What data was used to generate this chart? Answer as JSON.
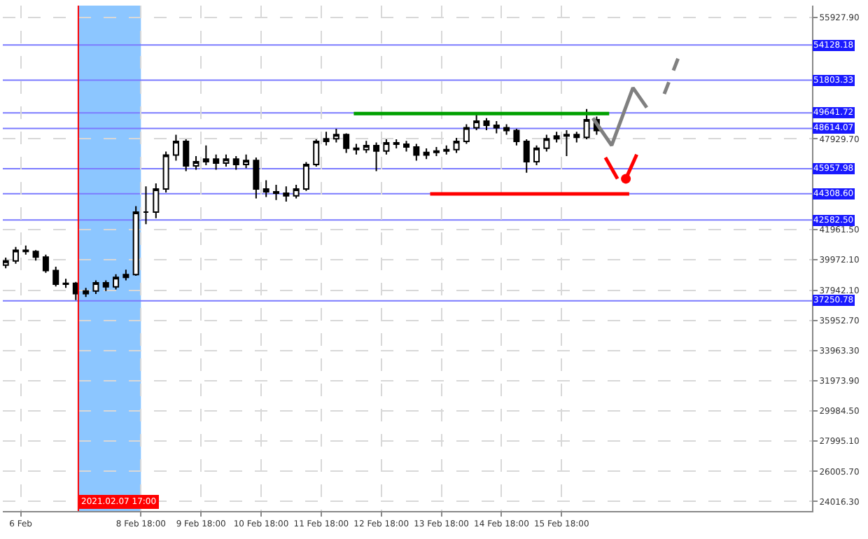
{
  "chart_data": {
    "type": "candlestick",
    "x": [
      "2021-02-06T12:00",
      "2021-02-06T16:00",
      "2021-02-06T20:00",
      "2021-02-07T00:00",
      "2021-02-07T04:00",
      "2021-02-07T08:00",
      "2021-02-07T12:00",
      "2021-02-07T16:00",
      "2021-02-07T20:00",
      "2021-02-08T00:00",
      "2021-02-08T04:00",
      "2021-02-08T08:00",
      "2021-02-08T12:00",
      "2021-02-08T16:00",
      "2021-02-08T20:00",
      "2021-02-09T00:00",
      "2021-02-09T04:00",
      "2021-02-09T08:00",
      "2021-02-09T12:00",
      "2021-02-09T16:00",
      "2021-02-09T20:00",
      "2021-02-10T00:00",
      "2021-02-10T04:00",
      "2021-02-10T08:00",
      "2021-02-10T12:00",
      "2021-02-10T16:00",
      "2021-02-10T20:00",
      "2021-02-11T00:00",
      "2021-02-11T04:00",
      "2021-02-11T08:00",
      "2021-02-11T12:00",
      "2021-02-11T16:00",
      "2021-02-11T20:00",
      "2021-02-12T00:00",
      "2021-02-12T04:00",
      "2021-02-12T08:00",
      "2021-02-12T12:00",
      "2021-02-12T16:00",
      "2021-02-12T20:00",
      "2021-02-13T00:00",
      "2021-02-13T04:00",
      "2021-02-13T08:00",
      "2021-02-13T12:00",
      "2021-02-13T16:00",
      "2021-02-13T20:00",
      "2021-02-14T00:00",
      "2021-02-14T04:00",
      "2021-02-14T08:00",
      "2021-02-14T12:00",
      "2021-02-14T16:00",
      "2021-02-14T20:00",
      "2021-02-15T00:00",
      "2021-02-15T04:00",
      "2021-02-15T08:00",
      "2021-02-15T12:00",
      "2021-02-15T16:00",
      "2021-02-15T20:00",
      "2021-02-16T00:00",
      "2021-02-16T04:00",
      "2021-02-16T08:00"
    ],
    "ohlc": [
      [
        39600,
        40100,
        39400,
        39880
      ],
      [
        39880,
        40800,
        39700,
        40590
      ],
      [
        40590,
        40900,
        40300,
        40500
      ],
      [
        40500,
        40600,
        39900,
        40140
      ],
      [
        40140,
        40300,
        39100,
        39250
      ],
      [
        39250,
        39500,
        38200,
        38350
      ],
      [
        38350,
        38700,
        38100,
        38400
      ],
      [
        38400,
        38500,
        37300,
        37720
      ],
      [
        37720,
        38100,
        37500,
        37900
      ],
      [
        37900,
        38600,
        37700,
        38440
      ],
      [
        38440,
        38600,
        37900,
        38170
      ],
      [
        38170,
        39000,
        38000,
        38800
      ],
      [
        38800,
        39300,
        38600,
        38980
      ],
      [
        38980,
        43500,
        38900,
        43100
      ],
      [
        43100,
        44800,
        42300,
        43100
      ],
      [
        43100,
        45000,
        42700,
        44620
      ],
      [
        44620,
        47100,
        44400,
        46860
      ],
      [
        46860,
        48200,
        46500,
        47760
      ],
      [
        47760,
        47900,
        45800,
        46150
      ],
      [
        46150,
        46800,
        45900,
        46420
      ],
      [
        46420,
        47500,
        46200,
        46600
      ],
      [
        46600,
        46900,
        45900,
        46330
      ],
      [
        46330,
        46900,
        46100,
        46600
      ],
      [
        46600,
        46800,
        45900,
        46240
      ],
      [
        46240,
        46900,
        46000,
        46510
      ],
      [
        46510,
        46700,
        44000,
        44620
      ],
      [
        44620,
        45200,
        44100,
        44440
      ],
      [
        44440,
        44900,
        43900,
        44350
      ],
      [
        44350,
        44800,
        43800,
        44180
      ],
      [
        44180,
        44900,
        44000,
        44620
      ],
      [
        44620,
        46400,
        44500,
        46240
      ],
      [
        46240,
        47900,
        46100,
        47760
      ],
      [
        47760,
        48400,
        47500,
        47940
      ],
      [
        47940,
        48600,
        47700,
        48210
      ],
      [
        48210,
        48300,
        47000,
        47310
      ],
      [
        47310,
        47600,
        46900,
        47220
      ],
      [
        47220,
        47800,
        47000,
        47490
      ],
      [
        47490,
        47700,
        45800,
        47130
      ],
      [
        47130,
        47900,
        46900,
        47670
      ],
      [
        47670,
        47900,
        47300,
        47580
      ],
      [
        47580,
        47800,
        47100,
        47400
      ],
      [
        47400,
        47600,
        46500,
        46860
      ],
      [
        46860,
        47300,
        46600,
        47040
      ],
      [
        47040,
        47400,
        46800,
        47130
      ],
      [
        47130,
        47500,
        46900,
        47220
      ],
      [
        47220,
        48000,
        47000,
        47760
      ],
      [
        47760,
        48900,
        47600,
        48660
      ],
      [
        48660,
        49600,
        48500,
        49100
      ],
      [
        49100,
        49300,
        48500,
        48830
      ],
      [
        48830,
        49100,
        48300,
        48660
      ],
      [
        48660,
        48900,
        48200,
        48480
      ],
      [
        48480,
        48600,
        47500,
        47760
      ],
      [
        47760,
        47900,
        45700,
        46420
      ],
      [
        46420,
        47500,
        46200,
        47310
      ],
      [
        47310,
        48200,
        47100,
        47940
      ],
      [
        47940,
        48400,
        47700,
        48120
      ],
      [
        48120,
        48500,
        46800,
        48210
      ],
      [
        48210,
        48400,
        47700,
        48030
      ],
      [
        48030,
        49900,
        47900,
        49190
      ],
      [
        49190,
        49400,
        48200,
        48480
      ]
    ],
    "color": "#000000",
    "series": [
      {
        "type": "line",
        "color": "#00a000",
        "x": [
          "2021-02-12T07:00",
          "2021-02-16T13:00"
        ],
        "values": [
          49600,
          49600
        ]
      },
      {
        "type": "line",
        "color": "#ff0000",
        "x": [
          "2021-02-13T13:30",
          "2021-02-16T21:00"
        ],
        "values": [
          44300,
          44300
        ]
      },
      {
        "type": "line",
        "color": "#808080",
        "x": [
          "2021-02-16T06:30",
          "2021-02-16T14:00",
          "2021-02-16T22:30",
          "2021-02-17T04:00"
        ],
        "values": [
          49300,
          47500,
          51300,
          50000
        ]
      },
      {
        "type": "line",
        "color": "#808080",
        "line_style": "dashed",
        "x": [
          "2021-02-17T11:00",
          "2021-02-17T16:40"
        ],
        "values": [
          50900,
          53300
        ]
      },
      {
        "type": "line",
        "color": "#ff0000",
        "x": [
          "2021-02-16T11:30",
          "2021-02-16T16:20"
        ],
        "values": [
          46700,
          45300
        ]
      },
      {
        "type": "line",
        "color": "#ff0000",
        "x": [
          "2021-02-16T19:40",
          "2021-02-17T00:00"
        ],
        "values": [
          45300,
          46900
        ]
      },
      {
        "type": "scatter",
        "color": "#ff0000",
        "marker": "circle",
        "x": [
          "2021-02-16T19:40"
        ],
        "values": [
          45300
        ]
      }
    ],
    "ref_lines": [
      {
        "axis": "y",
        "value": 54128.18,
        "label": "54128.18",
        "color": "#7b7bff"
      },
      {
        "axis": "y",
        "value": 51803.33,
        "label": "51803.33",
        "color": "#7b7bff"
      },
      {
        "axis": "y",
        "value": 49641.72,
        "label": "49641.72",
        "color": "#7b7bff"
      },
      {
        "axis": "y",
        "value": 48614.07,
        "label": "48614.07",
        "color": "#7b7bff"
      },
      {
        "axis": "y",
        "value": 45957.98,
        "label": "45957.98",
        "color": "#7b7bff"
      },
      {
        "axis": "y",
        "value": 44308.6,
        "label": "44308.60",
        "color": "#7b7bff"
      },
      {
        "axis": "y",
        "value": 42582.5,
        "label": "42582.50",
        "color": "#7b7bff"
      },
      {
        "axis": "y",
        "value": 37250.78,
        "label": "37250.78",
        "color": "#7b7bff"
      },
      {
        "axis": "x",
        "value": "2021-02-07T17:00",
        "label": "2021.02.07 17:00",
        "color": "#ff0000"
      }
    ],
    "bands": [
      {
        "axis": "x",
        "from": "2021-02-07T17:00",
        "to": "2021-02-08T18:00",
        "color": "#66b3ff"
      }
    ],
    "xlim": [
      "2021-02-06T10:50",
      "2021-02-19T22:00"
    ],
    "xticks": [
      {
        "value": "2021-02-06T18:00",
        "label": "6 Feb"
      },
      {
        "value": "2021-02-08T18:00",
        "label": "8 Feb 18:00"
      },
      {
        "value": "2021-02-09T18:00",
        "label": "9 Feb 18:00"
      },
      {
        "value": "2021-02-10T18:00",
        "label": "10 Feb 18:00"
      },
      {
        "value": "2021-02-11T18:00",
        "label": "11 Feb 18:00"
      },
      {
        "value": "2021-02-12T18:00",
        "label": "12 Feb 18:00"
      },
      {
        "value": "2021-02-13T18:00",
        "label": "13 Feb 18:00"
      },
      {
        "value": "2021-02-14T18:00",
        "label": "14 Feb 18:00"
      },
      {
        "value": "2021-02-15T18:00",
        "label": "15 Feb 18:00"
      }
    ],
    "ylim": [
      23390,
      56720
    ],
    "yticks": [
      {
        "value": 55927.9,
        "label": "55927.90"
      },
      {
        "value": 47929.7,
        "label": "47929.70"
      },
      {
        "value": 41961.5,
        "label": "41961.50"
      },
      {
        "value": 39972.1,
        "label": "39972.10"
      },
      {
        "value": 37942.1,
        "label": "37942.10"
      },
      {
        "value": 35952.7,
        "label": "35952.70"
      },
      {
        "value": 33963.3,
        "label": "33963.30"
      },
      {
        "value": 31973.9,
        "label": "31973.90"
      },
      {
        "value": 29984.5,
        "label": "29984.50"
      },
      {
        "value": 27995.1,
        "label": "27995.10"
      },
      {
        "value": 26005.7,
        "label": "26005.70"
      },
      {
        "value": 24016.3,
        "label": "24016.30"
      }
    ],
    "grid": true
  }
}
